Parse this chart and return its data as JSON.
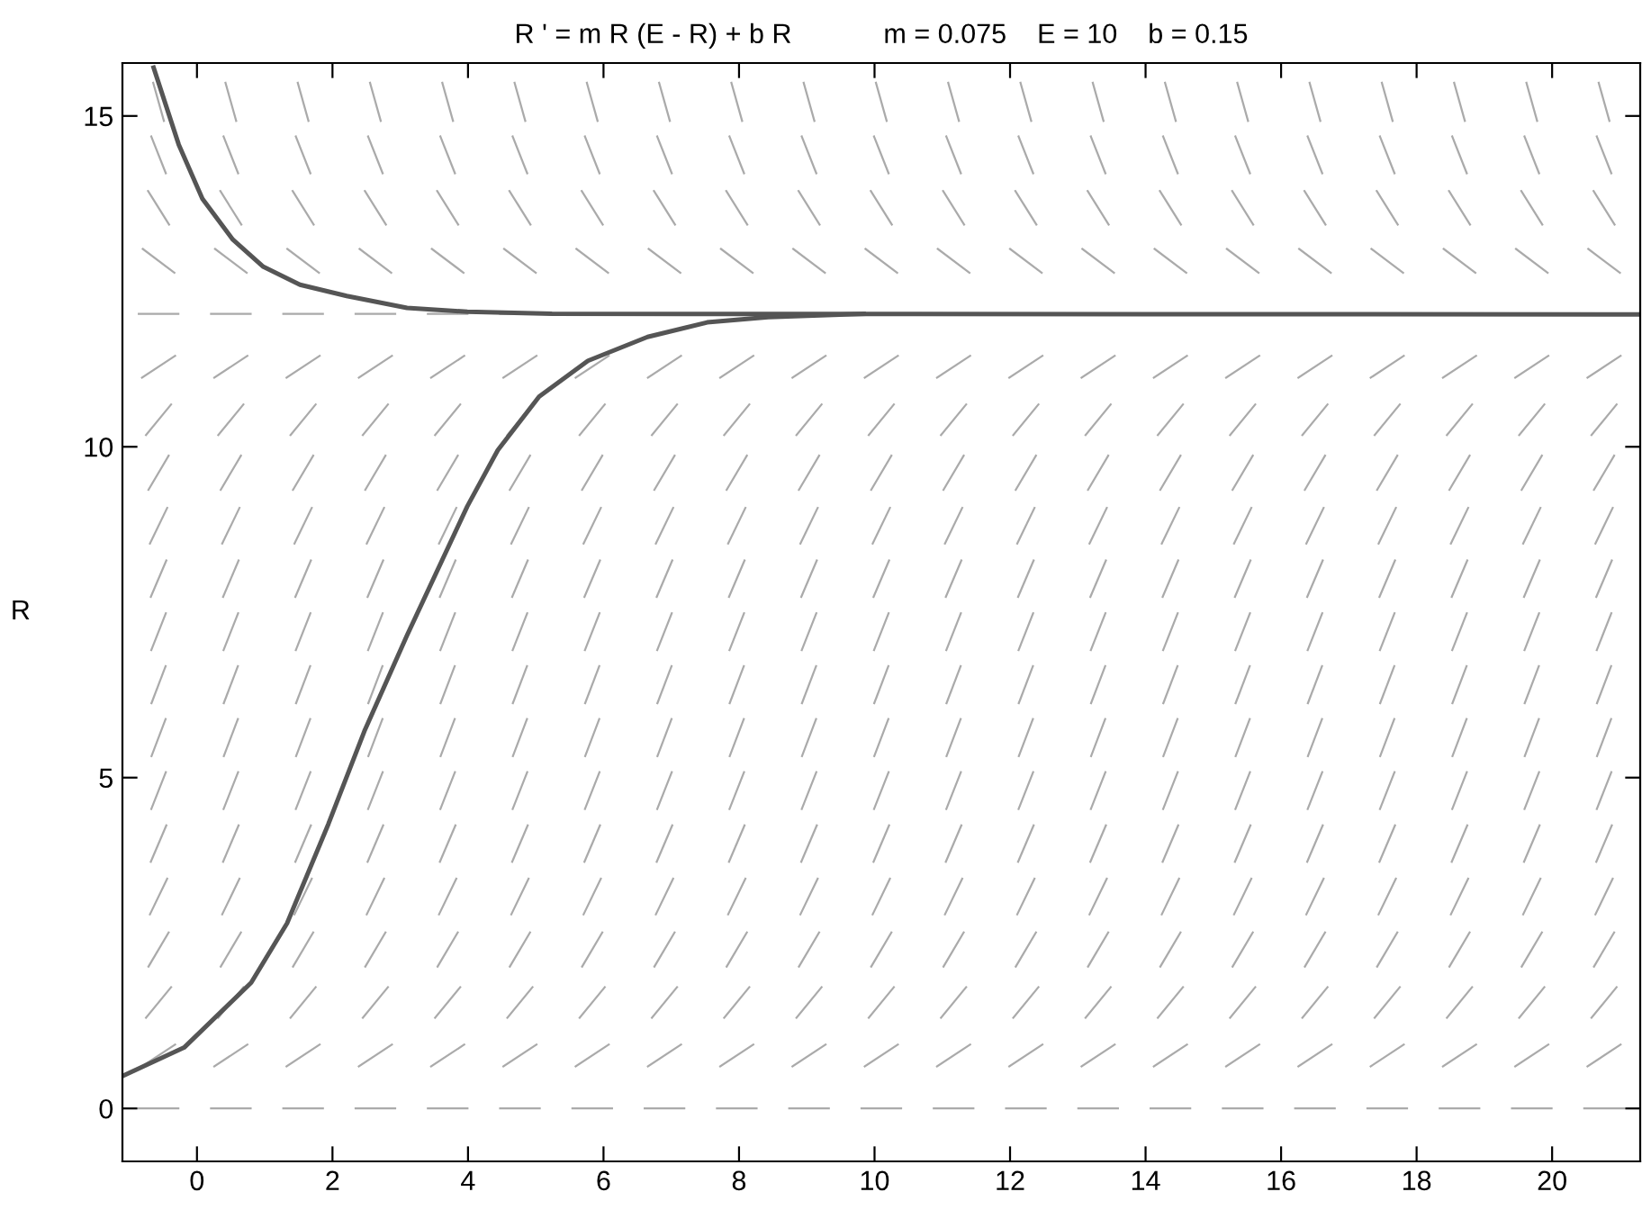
{
  "chart_data": {
    "type": "line",
    "title": "R ' = m R (E - R) + b R            m = 0.075    E = 10    b = 0.15",
    "ylabel": "R",
    "xlim": [
      -1.1,
      21.3
    ],
    "ylim": [
      -0.8,
      15.8
    ],
    "xticks": [
      0,
      2,
      4,
      6,
      8,
      10,
      12,
      14,
      16,
      18,
      20
    ],
    "yticks": [
      0,
      5,
      10,
      15
    ],
    "grid": false,
    "legend": false,
    "series": [
      {
        "color": "#555555",
        "x": [
          -1.1,
          -0.19,
          0.8,
          1.33,
          1.94,
          2.47,
          3.1,
          3.99,
          4.44,
          5.05,
          5.77,
          6.65,
          7.53,
          8.43,
          9.84
        ],
        "values": [
          0.49,
          0.92,
          1.9,
          2.8,
          4.3,
          5.7,
          7.15,
          9.1,
          9.95,
          10.76,
          11.3,
          11.66,
          11.88,
          11.96,
          12.01
        ]
      },
      {
        "color": "#555555",
        "x": [
          -0.64,
          -0.27,
          0.08,
          0.53,
          0.98,
          1.52,
          2.21,
          3.1,
          3.99,
          5.24,
          21.3
        ],
        "values": [
          15.73,
          14.57,
          13.75,
          13.13,
          12.72,
          12.45,
          12.28,
          12.1,
          12.04,
          12.01,
          12.0
        ]
      }
    ]
  }
}
